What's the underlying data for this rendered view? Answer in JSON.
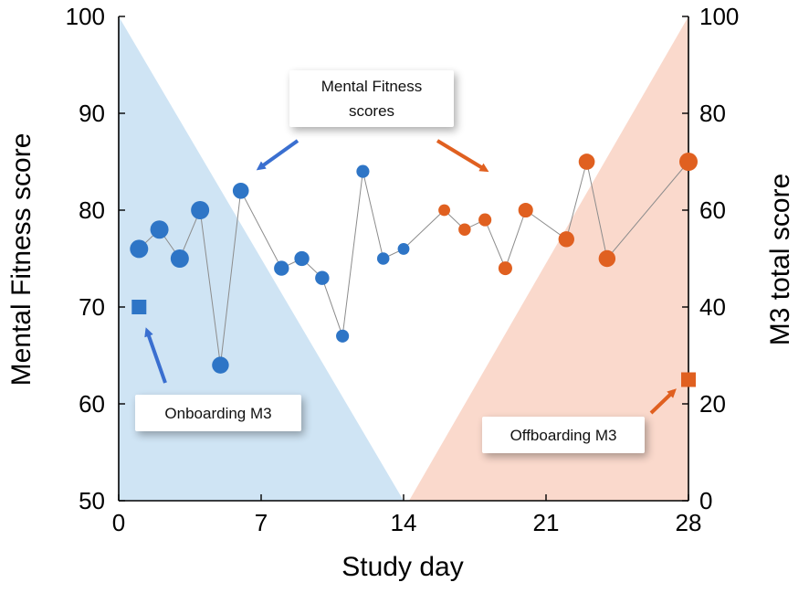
{
  "chart_data": {
    "type": "scatter",
    "xlabel": "Study day",
    "ylabel": "Mental Fitness score",
    "y2label": "M3 total score",
    "xlim": [
      0,
      28
    ],
    "ylim": [
      50,
      100
    ],
    "y2lim": [
      0,
      100
    ],
    "xticks": [
      "0",
      "7",
      "14",
      "21",
      "28"
    ],
    "xtick_values": [
      0,
      7,
      14,
      21,
      28
    ],
    "yticks": [
      "50",
      "60",
      "70",
      "80",
      "90",
      "100"
    ],
    "ytick_values": [
      50,
      60,
      70,
      80,
      90,
      100
    ],
    "y2ticks": [
      "0",
      "20",
      "40",
      "60",
      "80",
      "100"
    ],
    "y2tick_values": [
      0,
      20,
      40,
      60,
      80,
      100
    ],
    "colors": {
      "onboarding": "#2e75c6",
      "offboarding": "#e06020",
      "onboarding_fill": "#cfe4f4",
      "offboarding_fill": "#fad9cc",
      "connector": "#8c8c8c"
    },
    "mental_fitness_series": {
      "name": "Mental Fitness scores",
      "days": [
        1,
        2,
        3,
        4,
        5,
        6,
        8,
        9,
        10,
        11,
        12,
        13,
        14,
        16,
        17,
        18,
        19,
        20,
        22,
        23,
        24,
        28
      ],
      "scores": [
        76,
        78,
        75,
        80,
        64,
        82,
        74,
        75,
        73,
        67,
        84,
        75,
        76,
        80,
        78,
        79,
        74,
        80,
        77,
        85,
        75,
        85
      ],
      "marker_weight": [
        1.0,
        1.0,
        1.0,
        1.0,
        0.88,
        0.82,
        0.72,
        0.72,
        0.65,
        0.55,
        0.55,
        0.5,
        0.45,
        0.45,
        0.5,
        0.55,
        0.62,
        0.7,
        0.8,
        0.82,
        0.88,
        1.0
      ],
      "phase": [
        "on",
        "on",
        "on",
        "on",
        "on",
        "on",
        "on",
        "on",
        "on",
        "on",
        "on",
        "on",
        "on",
        "off",
        "off",
        "off",
        "off",
        "off",
        "off",
        "off",
        "off",
        "off"
      ]
    },
    "m3_points": [
      {
        "name": "Onboarding M3",
        "day": 1,
        "m3_score": 40,
        "phase": "on"
      },
      {
        "name": "Offboarding M3",
        "day": 28,
        "m3_score": 25,
        "phase": "off"
      }
    ],
    "shaded_regions": [
      {
        "phase": "on",
        "from_day": 0,
        "to_day": 14,
        "shape": "triangle-descending"
      },
      {
        "phase": "off",
        "from_day": 14,
        "to_day": 28,
        "shape": "triangle-ascending"
      }
    ],
    "annotations": {
      "mental_fitness": "Mental Fitness scores",
      "onboarding": "Onboarding M3",
      "offboarding": "Offboarding M3"
    }
  }
}
